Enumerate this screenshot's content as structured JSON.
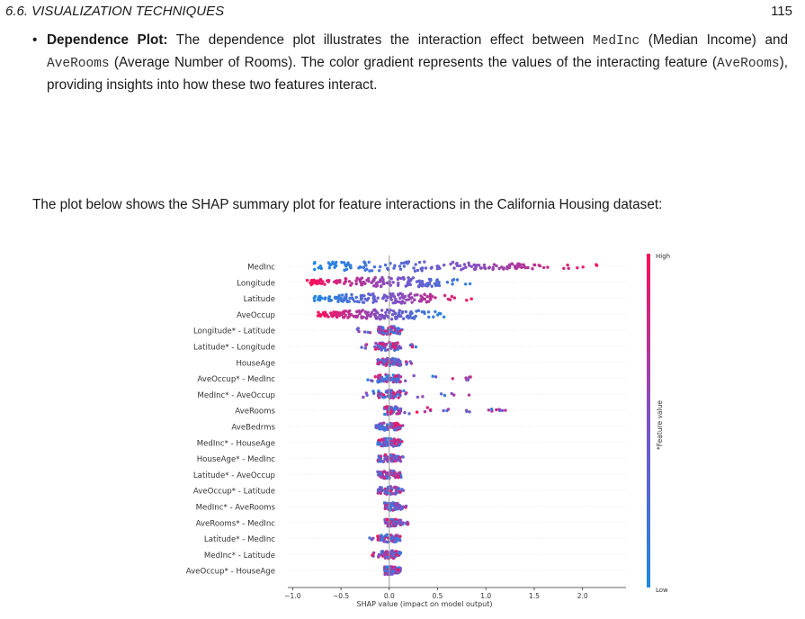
{
  "header": {
    "section": "6.6.  VISUALIZATION TECHNIQUES",
    "page_number": "115"
  },
  "bullet": {
    "title": "Dependence Plot:",
    "t1": " The dependence plot illustrates the interaction effect between ",
    "code1": "MedInc",
    "t2": " (Median Income) and ",
    "code2": "AveRooms",
    "t3": " (Average Number of Rooms). The color gradient represents the values of the interacting feature (",
    "code3": "AveRooms",
    "t4": "), providing insights into how these two features interact."
  },
  "paragraph": "The plot below shows the SHAP summary plot for feature interactions in the California Housing dataset:",
  "chart_data": {
    "type": "scatter",
    "xlabel": "SHAP value (impact on model output)",
    "xlim": [
      -1.05,
      2.45
    ],
    "xticks": [
      "−1.0",
      "−0.5",
      "0.0",
      "0.5",
      "1.0",
      "1.5",
      "2.0"
    ],
    "xtick_values": [
      -1.0,
      -0.5,
      0.0,
      0.5,
      1.0,
      1.5,
      2.0
    ],
    "colorbar": {
      "label": "*Feature value",
      "high": "High",
      "low": "Low",
      "low_color": "#1e88e5",
      "high_color": "#ff0d57"
    },
    "features": [
      {
        "name": "MedInc",
        "range": [
          -0.78,
          2.28
        ]
      },
      {
        "name": "Longitude",
        "range": [
          -0.85,
          1.0
        ]
      },
      {
        "name": "Latitude",
        "range": [
          -0.78,
          0.87
        ]
      },
      {
        "name": "AveOccup",
        "range": [
          -0.75,
          0.62
        ]
      },
      {
        "name": "Longitude* - Latitude",
        "range": [
          -0.38,
          0.28
        ]
      },
      {
        "name": "Latitude* - Longitude",
        "range": [
          -0.38,
          0.28
        ]
      },
      {
        "name": "HouseAge",
        "range": [
          -0.12,
          0.27
        ]
      },
      {
        "name": "AveOccup* - MedInc",
        "range": [
          -0.28,
          0.85
        ]
      },
      {
        "name": "MedInc* - AveOccup",
        "range": [
          -0.28,
          0.85
        ]
      },
      {
        "name": "AveRooms",
        "range": [
          -0.05,
          1.22
        ]
      },
      {
        "name": "AveBedrms",
        "range": [
          -0.15,
          0.15
        ]
      },
      {
        "name": "MedInc* - HouseAge",
        "range": [
          -0.12,
          0.15
        ]
      },
      {
        "name": "HouseAge* - MedInc",
        "range": [
          -0.12,
          0.15
        ]
      },
      {
        "name": "Latitude* - AveOccup",
        "range": [
          -0.12,
          0.15
        ]
      },
      {
        "name": "AveOccup* - Latitude",
        "range": [
          -0.12,
          0.15
        ]
      },
      {
        "name": "MedInc* - AveRooms",
        "range": [
          -0.05,
          0.2
        ]
      },
      {
        "name": "AveRooms* - MedInc",
        "range": [
          -0.05,
          0.2
        ]
      },
      {
        "name": "Latitude* - MedInc",
        "range": [
          -0.22,
          0.12
        ]
      },
      {
        "name": "MedInc* - Latitude",
        "range": [
          -0.22,
          0.12
        ]
      },
      {
        "name": "AveOccup* - HouseAge",
        "range": [
          -0.05,
          0.12
        ]
      }
    ]
  }
}
